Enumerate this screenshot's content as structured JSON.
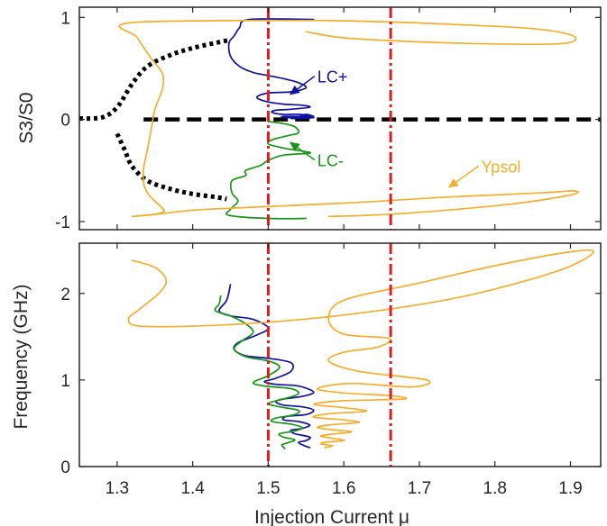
{
  "figure": {
    "xlabel": "Injection Current μ"
  },
  "chart_data": [
    {
      "type": "line",
      "panel": "top",
      "title": "",
      "xlabel": "",
      "ylabel": "S3/S0",
      "xlim": [
        1.25,
        1.94
      ],
      "ylim": [
        -1.08,
        1.1
      ],
      "xticks": [
        1.3,
        1.4,
        1.5,
        1.6,
        1.7,
        1.8,
        1.9
      ],
      "yticks": [
        -1,
        0,
        1
      ],
      "ytick_labels": [
        "-1",
        "0",
        "1"
      ],
      "grid": false,
      "colors": {
        "lc_plus": "#0f0fa0",
        "lc_minus": "#169616",
        "ypsol": "#f5ad2b",
        "dashed": "#000000",
        "vline": "#e31a1c"
      },
      "vlines": [
        1.5,
        1.662
      ],
      "annotations": [
        {
          "label": "LC+",
          "color": "#0f0fa0",
          "tip": [
            1.528,
            0.24
          ],
          "text_at": [
            1.565,
            0.38
          ]
        },
        {
          "label": "LC-",
          "color": "#169616",
          "tip": [
            1.528,
            -0.22
          ],
          "text_at": [
            1.565,
            -0.44
          ]
        },
        {
          "label": "Ypsol",
          "color": "#f5ad2b",
          "tip": [
            1.738,
            -0.67
          ],
          "text_at": [
            1.782,
            -0.5
          ]
        }
      ],
      "series": [
        {
          "role": "stable-branch",
          "style": "dashed",
          "x": [
            1.335,
            1.94
          ],
          "y": [
            0,
            0
          ]
        },
        {
          "role": "dotted-upper",
          "style": "dotted",
          "x": [
            1.25,
            1.28,
            1.3,
            1.32,
            1.34,
            1.37,
            1.4,
            1.43,
            1.45
          ],
          "y": [
            0.01,
            0.02,
            0.12,
            0.35,
            0.52,
            0.63,
            0.7,
            0.75,
            0.78
          ]
        },
        {
          "role": "dotted-lower",
          "style": "dotted",
          "x": [
            1.3,
            1.31,
            1.32,
            1.34,
            1.37,
            1.4,
            1.43,
            1.445
          ],
          "y": [
            -0.14,
            -0.3,
            -0.46,
            -0.6,
            -0.68,
            -0.73,
            -0.76,
            -0.78
          ]
        },
        {
          "name": "LC+",
          "x": [
            1.56,
            1.475,
            1.462,
            1.455,
            1.448,
            1.45,
            1.462,
            1.48,
            1.5,
            1.52,
            1.54,
            1.55,
            1.53,
            1.5,
            1.485,
            1.495,
            1.52,
            1.545,
            1.555,
            1.53,
            1.51,
            1.505,
            1.52,
            1.54,
            1.555,
            1.54,
            1.52,
            1.52,
            1.54,
            1.56,
            1.545,
            1.53,
            1.54,
            1.555,
            1.56,
            1.55,
            1.54,
            1.55,
            1.56
          ],
          "y": [
            0.98,
            0.98,
            0.9,
            0.82,
            0.75,
            0.62,
            0.52,
            0.46,
            0.43,
            0.4,
            0.36,
            0.31,
            0.27,
            0.26,
            0.22,
            0.18,
            0.15,
            0.14,
            0.12,
            0.1,
            0.09,
            0.07,
            0.05,
            0.05,
            0.04,
            0.03,
            0.03,
            0.02,
            0.02,
            0.02,
            0.01,
            0.01,
            0.01,
            0.02,
            0.02,
            0.03,
            0.02,
            0.05,
            0.03
          ]
        },
        {
          "name": "LC-",
          "x": [
            1.5,
            1.52,
            1.535,
            1.54,
            1.525,
            1.505,
            1.5,
            1.52,
            1.545,
            1.555,
            1.52,
            1.5,
            1.49,
            1.47,
            1.47,
            1.452,
            1.452,
            1.46,
            1.45,
            1.448,
            1.5,
            1.55
          ],
          "y": [
            -0.02,
            -0.04,
            -0.07,
            -0.13,
            -0.16,
            -0.2,
            -0.24,
            -0.28,
            -0.31,
            -0.33,
            -0.35,
            -0.4,
            -0.45,
            -0.5,
            -0.55,
            -0.6,
            -0.72,
            -0.8,
            -0.88,
            -0.94,
            -0.97,
            -0.97
          ]
        },
        {
          "name": "Ypsol",
          "x": [
            1.57,
            1.32,
            1.327,
            1.345,
            1.36,
            1.36,
            1.35,
            1.345,
            1.34,
            1.335,
            1.335,
            1.34,
            1.35,
            1.36,
            1.362,
            1.35,
            1.32,
            1.35,
            1.42,
            1.6,
            1.74,
            1.86,
            1.905,
            1.9,
            1.82,
            1.7,
            1.63,
            1.58
          ],
          "y": [
            0.97,
            0.95,
            0.8,
            0.6,
            0.45,
            0.3,
            0.1,
            -0.1,
            -0.3,
            -0.48,
            -0.62,
            -0.72,
            -0.8,
            -0.87,
            -0.9,
            -0.93,
            -0.95,
            -0.93,
            -0.88,
            -0.82,
            -0.76,
            -0.72,
            -0.7,
            -0.74,
            -0.83,
            -0.91,
            -0.94,
            -0.95
          ]
        },
        {
          "name": "Ypsol",
          "x": [
            1.57,
            1.64,
            1.75,
            1.85,
            1.9,
            1.905,
            1.88,
            1.8,
            1.7,
            1.6,
            1.55
          ],
          "y": [
            0.97,
            0.96,
            0.93,
            0.89,
            0.83,
            0.77,
            0.74,
            0.74,
            0.76,
            0.8,
            0.86
          ]
        }
      ]
    },
    {
      "type": "line",
      "panel": "bottom",
      "title": "",
      "xlabel": "Injection Current μ",
      "ylabel": "Frequency (GHz)",
      "xlim": [
        1.25,
        1.94
      ],
      "ylim": [
        0,
        2.58
      ],
      "xticks": [
        1.3,
        1.4,
        1.5,
        1.6,
        1.7,
        1.8,
        1.9
      ],
      "xtick_labels": [
        "1.3",
        "1.4",
        "1.5",
        "1.6",
        "1.7",
        "1.8",
        "1.9"
      ],
      "yticks": [
        0,
        1,
        2
      ],
      "ytick_labels": [
        "0",
        "1",
        "2"
      ],
      "grid": false,
      "vlines": [
        1.5,
        1.662
      ],
      "series": [
        {
          "name": "LC+",
          "x": [
            1.45,
            1.445,
            1.435,
            1.45,
            1.48,
            1.5,
            1.485,
            1.46,
            1.455,
            1.47,
            1.5,
            1.53,
            1.53,
            1.51,
            1.495,
            1.51,
            1.54,
            1.56,
            1.545,
            1.52,
            1.51,
            1.52,
            1.545,
            1.56,
            1.55,
            1.525,
            1.52,
            1.54,
            1.555,
            1.545,
            1.53,
            1.535,
            1.555,
            1.55,
            1.54,
            1.548,
            1.555
          ],
          "y": [
            2.1,
            1.92,
            1.8,
            1.74,
            1.7,
            1.6,
            1.52,
            1.43,
            1.35,
            1.28,
            1.25,
            1.2,
            1.1,
            1.02,
            0.98,
            0.95,
            0.93,
            0.86,
            0.81,
            0.78,
            0.75,
            0.71,
            0.69,
            0.65,
            0.6,
            0.58,
            0.54,
            0.52,
            0.48,
            0.44,
            0.42,
            0.38,
            0.34,
            0.3,
            0.28,
            0.24,
            0.22
          ]
        },
        {
          "name": "LC-",
          "x": [
            1.437,
            1.435,
            1.43,
            1.45,
            1.47,
            1.48,
            1.465,
            1.455,
            1.47,
            1.5,
            1.515,
            1.5,
            1.48,
            1.495,
            1.53,
            1.54,
            1.52,
            1.5,
            1.515,
            1.54,
            1.535,
            1.51,
            1.505,
            1.53,
            1.545,
            1.535,
            1.515,
            1.52,
            1.535,
            1.528,
            1.518,
            1.522
          ],
          "y": [
            1.97,
            1.88,
            1.8,
            1.74,
            1.65,
            1.55,
            1.45,
            1.36,
            1.27,
            1.22,
            1.15,
            1.05,
            0.97,
            0.93,
            0.9,
            0.84,
            0.78,
            0.73,
            0.69,
            0.65,
            0.6,
            0.56,
            0.52,
            0.49,
            0.45,
            0.41,
            0.38,
            0.34,
            0.31,
            0.28,
            0.25,
            0.21
          ]
        },
        {
          "name": "Ypsol",
          "x": [
            1.32,
            1.35,
            1.365,
            1.355,
            1.33,
            1.315,
            1.335,
            1.45,
            1.6,
            1.75,
            1.88,
            1.93,
            1.9,
            1.8,
            1.7,
            1.6,
            1.58,
            1.6,
            1.66,
            1.645,
            1.6,
            1.58,
            1.62,
            1.71,
            1.69,
            1.61,
            1.565,
            1.6,
            1.66,
            1.68,
            1.6,
            1.56,
            1.6,
            1.63,
            1.58,
            1.56,
            1.6,
            1.62,
            1.58,
            1.565,
            1.59,
            1.61,
            1.58,
            1.57,
            1.59,
            1.6,
            1.575,
            1.57,
            1.585,
            1.575
          ],
          "y": [
            2.38,
            2.3,
            2.15,
            2.0,
            1.82,
            1.7,
            1.62,
            1.64,
            1.75,
            1.95,
            2.25,
            2.47,
            2.48,
            2.32,
            2.12,
            1.92,
            1.7,
            1.53,
            1.48,
            1.38,
            1.32,
            1.22,
            1.1,
            1.0,
            0.92,
            0.96,
            0.9,
            0.85,
            0.82,
            0.78,
            0.76,
            0.72,
            0.68,
            0.64,
            0.61,
            0.57,
            0.54,
            0.51,
            0.48,
            0.45,
            0.42,
            0.4,
            0.37,
            0.35,
            0.32,
            0.3,
            0.28,
            0.26,
            0.24,
            0.22
          ]
        }
      ]
    }
  ]
}
